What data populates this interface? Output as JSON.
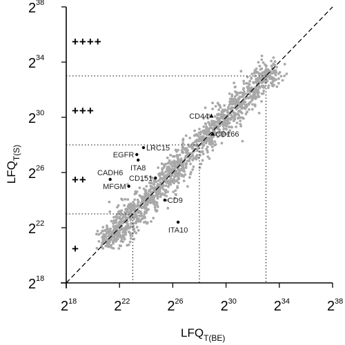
{
  "chart_data": {
    "type": "scatter",
    "title": "",
    "xlabel": {
      "main": "LFQ",
      "sub": "T(BE)"
    },
    "ylabel": {
      "main": "LFQ",
      "sub": "T(S)"
    },
    "scale": "log2",
    "tick_base": "2",
    "xlim_exp": [
      18,
      38
    ],
    "ylim_exp": [
      18,
      38
    ],
    "x_ticks": [
      "18",
      "22",
      "26",
      "30",
      "34",
      "38"
    ],
    "y_ticks": [
      "18",
      "22",
      "26",
      "30",
      "34",
      "38"
    ],
    "grid": false,
    "diagonal": {
      "style": "dashed",
      "from_exp": [
        18,
        18
      ],
      "to_exp": [
        38,
        38
      ]
    },
    "threshold_lines": {
      "style": "dotted",
      "y_exp": [
        23,
        28,
        33
      ],
      "x_exp": [
        23,
        28,
        33
      ]
    },
    "category_labels": [
      {
        "text": "+",
        "y_exp": 20.5
      },
      {
        "text": "++",
        "y_exp": 25.5
      },
      {
        "text": "+++",
        "y_exp": 30.5
      },
      {
        "text": "++++",
        "y_exp": 35.5
      }
    ],
    "highlighted_points": [
      {
        "label": "CD44",
        "x_exp": 28.9,
        "y_exp": 30.1,
        "marker": "triangle",
        "label_side": "left"
      },
      {
        "label": "CD166",
        "x_exp": 29.0,
        "y_exp": 28.8,
        "marker": "triangle",
        "label_side": "right"
      },
      {
        "label": "LRC15",
        "x_exp": 23.8,
        "y_exp": 27.8,
        "marker": "circle",
        "label_side": "right"
      },
      {
        "label": "EGFR",
        "x_exp": 23.3,
        "y_exp": 27.3,
        "marker": "circle",
        "label_side": "left"
      },
      {
        "label": "ITA8",
        "x_exp": 23.4,
        "y_exp": 26.9,
        "marker": "circle",
        "label_side": "below"
      },
      {
        "label": "CADH6",
        "x_exp": 21.3,
        "y_exp": 25.5,
        "marker": "circle",
        "label_side": "above"
      },
      {
        "label": "CD151",
        "x_exp": 24.7,
        "y_exp": 25.6,
        "marker": "circle",
        "label_side": "left"
      },
      {
        "label": "MFGM",
        "x_exp": 22.7,
        "y_exp": 25.0,
        "marker": "circle",
        "label_side": "left"
      },
      {
        "label": "CD9",
        "x_exp": 25.4,
        "y_exp": 24.0,
        "marker": "circle",
        "label_side": "right"
      },
      {
        "label": "ITA10",
        "x_exp": 26.4,
        "y_exp": 22.4,
        "marker": "circle",
        "label_side": "below"
      }
    ],
    "background_points_note_count": 1500,
    "colors": {
      "points": "#a8a8a8",
      "highlight": "#000000",
      "axis": "#000000"
    }
  }
}
